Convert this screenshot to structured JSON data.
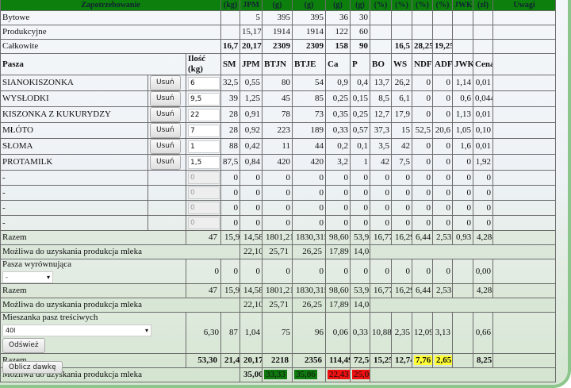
{
  "requirements": {
    "title": "Zapotrzebowanie",
    "units": [
      "(kg)",
      "JPM",
      "(g)",
      "(g)",
      "(g)",
      "(g)",
      "(%)",
      "(%)",
      "(%)",
      "(%)",
      "JWK",
      "(zł)"
    ],
    "notes_header": "Uwagi",
    "rows": [
      {
        "label": "Bytowe",
        "values": [
          "",
          "5",
          "395",
          "395",
          "36",
          "30",
          "",
          "",
          "",
          "",
          "",
          ""
        ]
      },
      {
        "label": "Produkcyjne",
        "values": [
          "",
          "15,17",
          "1914",
          "1914",
          "122",
          "60",
          "",
          "",
          "",
          "",
          "",
          ""
        ]
      },
      {
        "label": "Całkowite",
        "values": [
          "16,7",
          "20,17",
          "2309",
          "2309",
          "158",
          "90",
          "",
          "16,5",
          "28,25",
          "19,25",
          "",
          ""
        ]
      }
    ]
  },
  "feeds": {
    "name_header": "Pasza",
    "qty_header": "Ilość (kg)",
    "columns": [
      "SM",
      "JPM",
      "BTJN",
      "BTJE",
      "Ca",
      "P",
      "BO",
      "WS",
      "NDF",
      "ADF",
      "JWK",
      "Cena"
    ],
    "remove_label": "Usuń",
    "rows": [
      {
        "name": "SIANOKISZONKA",
        "qty": "6",
        "values": [
          "32,5",
          "0,55",
          "80",
          "54",
          "0,9",
          "0,4",
          "13,7",
          "26,2",
          "0",
          "0",
          "1,14",
          "0,01"
        ]
      },
      {
        "name": "WYSŁODKI",
        "qty": "9,5",
        "values": [
          "39",
          "1,25",
          "45",
          "85",
          "0,25",
          "0,15",
          "8,5",
          "6,1",
          "0",
          "0",
          "0,6",
          "0,044"
        ]
      },
      {
        "name": "KISZONKA Z KUKURYDZY",
        "qty": "22",
        "values": [
          "28",
          "0,91",
          "78",
          "73",
          "0,35",
          "0,25",
          "12,7",
          "17,9",
          "0",
          "0",
          "1,13",
          "0,01"
        ]
      },
      {
        "name": "MŁÓTO",
        "qty": "7",
        "values": [
          "28",
          "0,92",
          "223",
          "189",
          "0,33",
          "0,57",
          "37,3",
          "15",
          "52,5",
          "20,6",
          "1,05",
          "0,10"
        ]
      },
      {
        "name": "SŁOMA",
        "qty": "1",
        "values": [
          "88",
          "0,42",
          "11",
          "44",
          "0,2",
          "0,1",
          "3,5",
          "42",
          "0",
          "0",
          "1,6",
          "0,01"
        ]
      },
      {
        "name": "PROTAMILK",
        "qty": "1,5",
        "values": [
          "87,5",
          "0,84",
          "420",
          "420",
          "3,2",
          "1",
          "42",
          "7,5",
          "0",
          "0",
          "0",
          "1,92"
        ]
      },
      {
        "name": "-",
        "qty": "0",
        "empty": true,
        "values": [
          "0",
          "0",
          "0",
          "0",
          "0",
          "0",
          "0",
          "0",
          "0",
          "0",
          "0",
          "0"
        ]
      },
      {
        "name": "-",
        "qty": "0",
        "empty": true,
        "values": [
          "0",
          "0",
          "0",
          "0",
          "0",
          "0",
          "0",
          "0",
          "0",
          "0",
          "0",
          "0"
        ]
      },
      {
        "name": "-",
        "qty": "0",
        "empty": true,
        "values": [
          "0",
          "0",
          "0",
          "0",
          "0",
          "0",
          "0",
          "0",
          "0",
          "0",
          "0",
          "0"
        ]
      },
      {
        "name": "-",
        "qty": "0",
        "empty": true,
        "values": [
          "0",
          "0",
          "0",
          "0",
          "0",
          "0",
          "0",
          "0",
          "0",
          "0",
          "0",
          "0"
        ]
      }
    ]
  },
  "total1": {
    "label": "Razem",
    "values": [
      "47",
      "15,97",
      "14,58",
      "1801,215",
      "1830,315",
      "98,60",
      "53,93",
      "16,77",
      "16,29",
      "6,44",
      "2,53",
      "0,93",
      "4,288"
    ]
  },
  "possible1": {
    "label": "Możliwa do uzyskania produkcja mleka",
    "values": [
      "22,10",
      "25,71",
      "26,25",
      "17,89",
      "14,08"
    ]
  },
  "balancing": {
    "label": "Pasza wyrównująca",
    "selected": "-",
    "values": [
      "0",
      "0",
      "0",
      "0",
      "0",
      "0",
      "0",
      "0",
      "0",
      "0",
      "0",
      "",
      "0,00"
    ]
  },
  "total2": {
    "label": "Razem",
    "values": [
      "47",
      "15,97",
      "14,58",
      "1801,215",
      "1830,315",
      "98,60",
      "53,93",
      "16,77",
      "16,29",
      "6,44",
      "2,53",
      "",
      "4,288"
    ]
  },
  "possible2": {
    "label": "Możliwa do uzyskania produkcja mleka",
    "values": [
      "22,10",
      "25,71",
      "26,25",
      "17,89",
      "14,08"
    ]
  },
  "mixture": {
    "label": "Mieszanka pasz treściwych",
    "selected": "40l",
    "refresh_label": "Odśwież",
    "values": [
      "6,30",
      "87",
      "1,04",
      "75",
      "96",
      "0,06",
      "0,33",
      "10,88",
      "2,35",
      "12,09",
      "3,13",
      "",
      "0,66"
    ]
  },
  "total3": {
    "label": "Razem",
    "values": [
      "53,30",
      "21,45",
      "20,17",
      "2218",
      "2356",
      "114,49",
      "72,56",
      "15,25",
      "12,74",
      "7,76",
      "2,65",
      "",
      "8,25"
    ],
    "highlights": {
      "9": "#ffff33",
      "10": "#ffff33"
    }
  },
  "possible3": {
    "label": "Możliwa do uzyskania produkcja mleka",
    "values": [
      "35,00",
      "33,33",
      "35,86",
      "22,43",
      "25,04"
    ],
    "highlights": {
      "1": "#0f7a0f",
      "2": "#0f7a0f",
      "3": "#ee1111",
      "4": "#ee1111"
    }
  },
  "calculate_label": "Oblicz dawkę",
  "colors": {
    "header_green": "#0c7f0c",
    "ok_green": "#0f7a0f",
    "bad_red": "#ee1111",
    "warn_yellow": "#ffff33"
  }
}
